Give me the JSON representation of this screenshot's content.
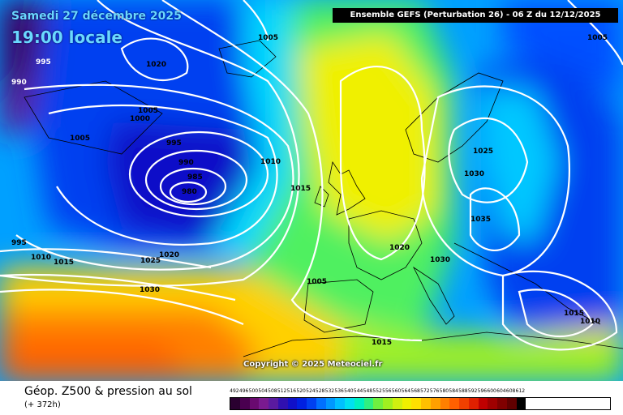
{
  "header": {
    "date": "Samedi 27 décembre 2025",
    "time": "19:00 locale",
    "model_run": "Ensemble GEFS  (Perturbation 26)  -  06 Z du 12/12/2025"
  },
  "copyright": "Copyright © 2025 Meteociel.fr",
  "footer": {
    "parameter": "Géop. Z500 & pression au sol",
    "lead_time": "(+ 372h)"
  },
  "legend": {
    "values": [
      "492",
      "496",
      "500",
      "504",
      "508",
      "512",
      "516",
      "520",
      "524",
      "528",
      "532",
      "536",
      "540",
      "544",
      "548",
      "552",
      "556",
      "560",
      "564",
      "568",
      "572",
      "576",
      "580",
      "584",
      "588",
      "592",
      "596",
      "600",
      "604",
      "608",
      "612"
    ],
    "colors": [
      "#2a0030",
      "#4a0050",
      "#6a0a70",
      "#7a1a90",
      "#5a1aa0",
      "#3010b0",
      "#1010c8",
      "#0020e0",
      "#0040f0",
      "#0070ff",
      "#0098ff",
      "#00c0ff",
      "#00e0f0",
      "#00f0c0",
      "#30f080",
      "#70f040",
      "#a0f020",
      "#d0f010",
      "#f0f000",
      "#ffe000",
      "#ffc000",
      "#ffa000",
      "#ff8000",
      "#ff6000",
      "#f04000",
      "#e02000",
      "#c00000",
      "#a00000",
      "#800000",
      "#600000",
      "#000000"
    ]
  },
  "isobar_labels": [
    {
      "text": "995",
      "id": "lbl-995-nw"
    },
    {
      "text": "990",
      "id": "lbl-990-nw"
    },
    {
      "text": "1020",
      "id": "lbl-1020-n"
    },
    {
      "text": "1005",
      "id": "lbl-1005-w"
    },
    {
      "text": "1000",
      "id": "lbl-1000-w"
    },
    {
      "text": "1005",
      "id": "lbl-1005-w2"
    },
    {
      "text": "995",
      "id": "lbl-995-low"
    },
    {
      "text": "990",
      "id": "lbl-990-low"
    },
    {
      "text": "985",
      "id": "lbl-985-low"
    },
    {
      "text": "980",
      "id": "lbl-980-low"
    },
    {
      "text": "1010",
      "id": "lbl-1010-c"
    },
    {
      "text": "1015",
      "id": "lbl-1015-c"
    },
    {
      "text": "1005",
      "id": "lbl-1005-top"
    },
    {
      "text": "1005",
      "id": "lbl-1005-ne"
    },
    {
      "text": "1025",
      "id": "lbl-1025-e"
    },
    {
      "text": "1030",
      "id": "lbl-1030-e"
    },
    {
      "text": "1035",
      "id": "lbl-1035-e"
    },
    {
      "text": "1030",
      "id": "lbl-1030-c"
    },
    {
      "text": "1020",
      "id": "lbl-1020-c"
    },
    {
      "text": "1025",
      "id": "lbl-1025-sw"
    },
    {
      "text": "1020",
      "id": "lbl-1020-sw"
    },
    {
      "text": "1030",
      "id": "lbl-1030-sw"
    },
    {
      "text": "1005",
      "id": "lbl-1005-s"
    },
    {
      "text": "1015",
      "id": "lbl-1015-s"
    },
    {
      "text": "1015",
      "id": "lbl-1015-se"
    },
    {
      "text": "1010",
      "id": "lbl-1010-se"
    },
    {
      "text": "1010",
      "id": "lbl-1010-w"
    },
    {
      "text": "1015",
      "id": "lbl-1015-w"
    },
    {
      "text": "995",
      "id": "lbl-995-w"
    }
  ]
}
